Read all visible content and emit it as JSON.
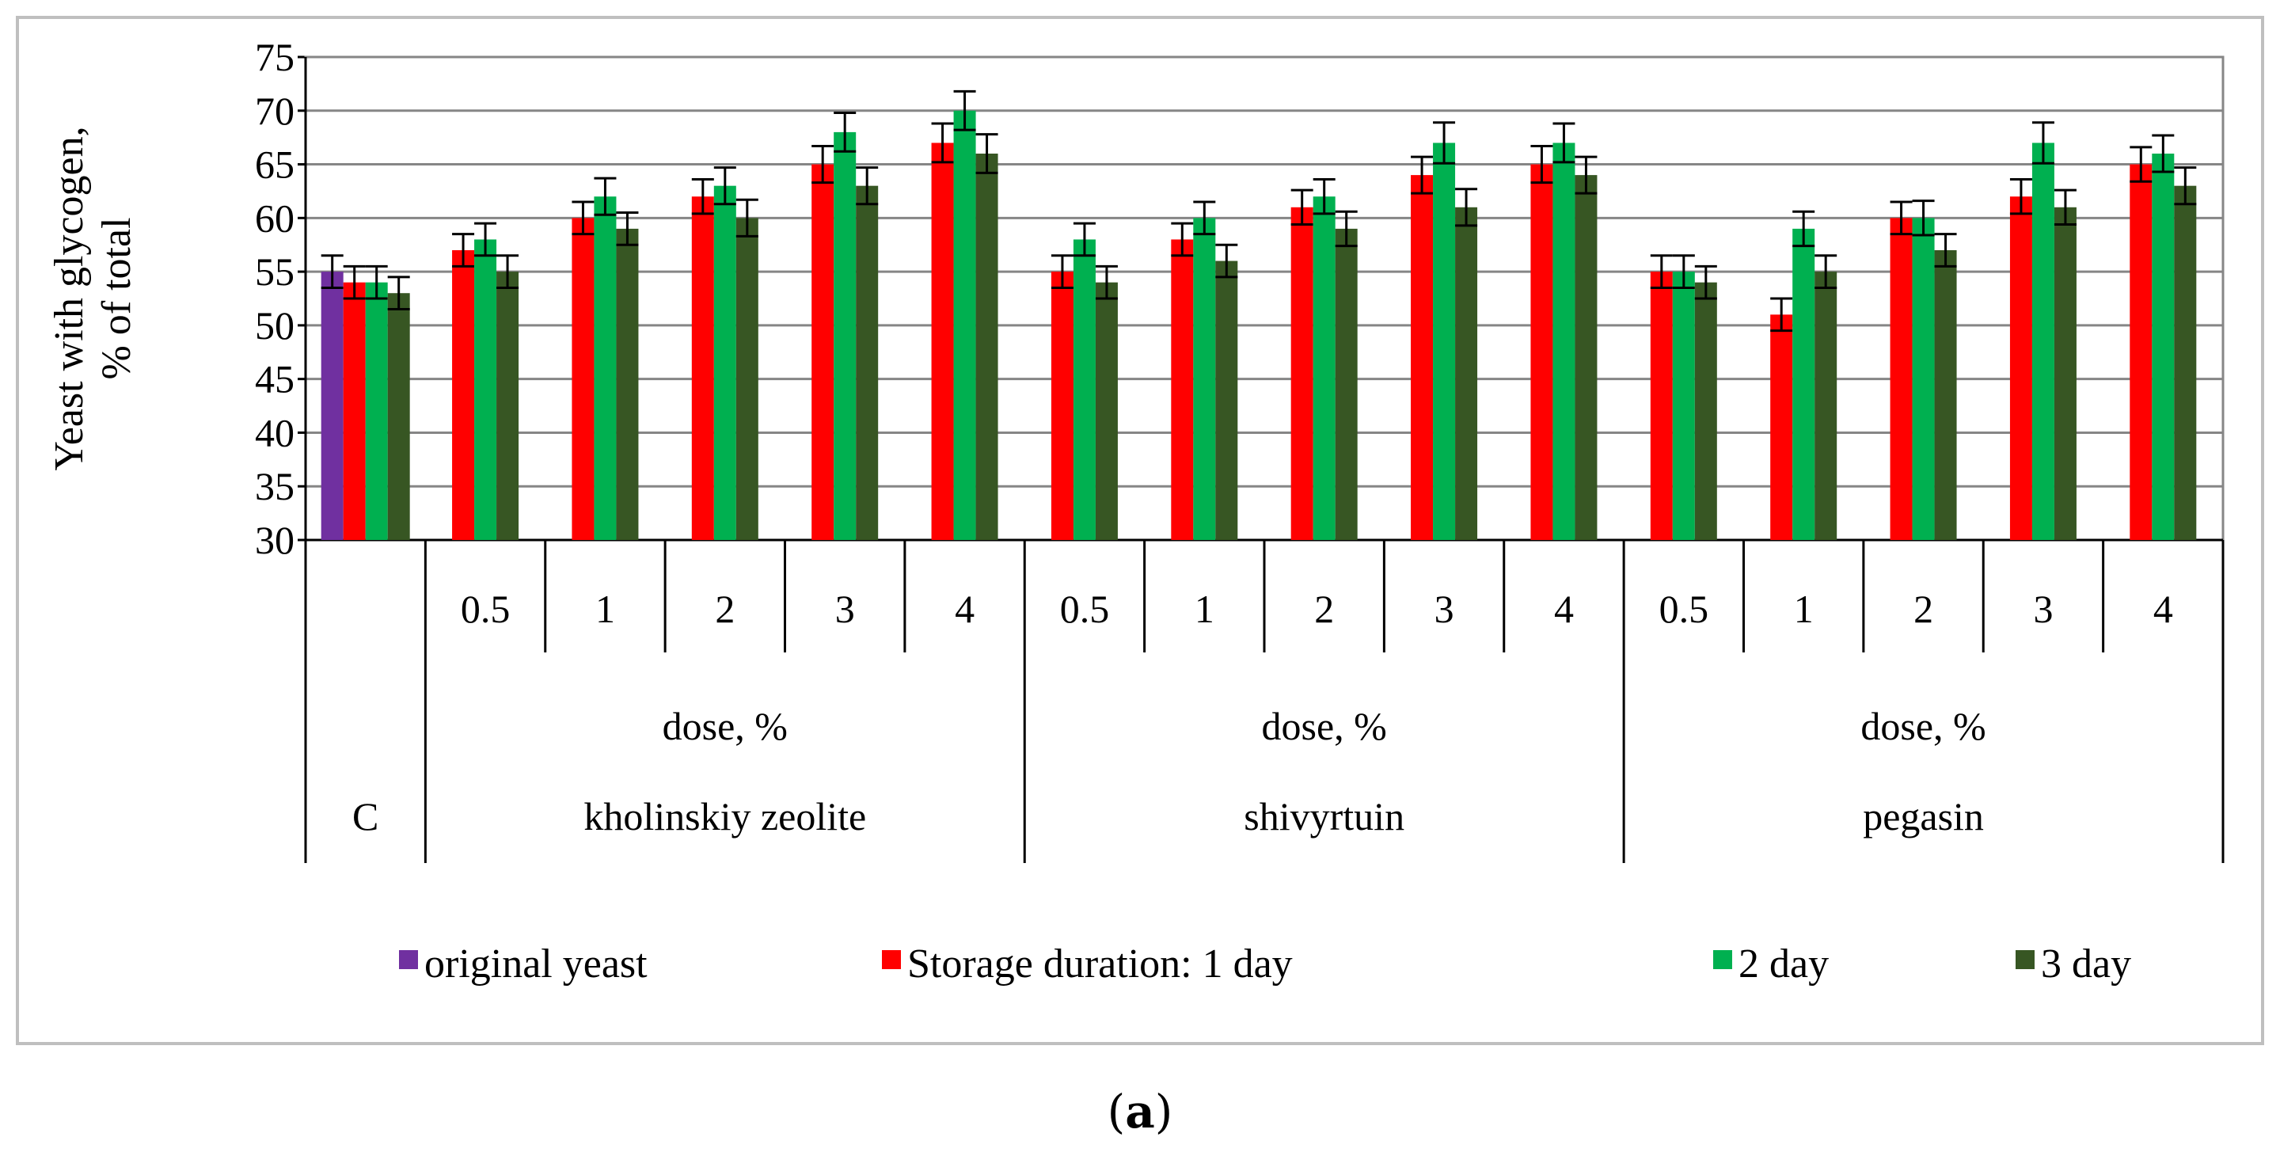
{
  "chart_data": {
    "type": "bar",
    "ylabel_line1": "Yeast with glycogen,",
    "ylabel_line2": "% of total",
    "ylim": [
      30,
      75
    ],
    "ytick_step": 5,
    "yticks": [
      "30",
      "35",
      "40",
      "45",
      "50",
      "55",
      "60",
      "65",
      "70",
      "75"
    ],
    "grid": true,
    "legend_position": "bottom",
    "series": [
      {
        "name": "original yeast",
        "color": "#7030a0"
      },
      {
        "name": "Storage duration: 1 day",
        "color": "#ff0000"
      },
      {
        "name": "2 day",
        "color": "#00b050"
      },
      {
        "name": "3 day",
        "color": "#375623"
      }
    ],
    "groups": [
      {
        "label": "C",
        "dose_label": "",
        "categories": [
          ""
        ],
        "values": [
          [
            55,
            54,
            54,
            53
          ]
        ],
        "errors": [
          [
            1.5,
            1.5,
            1.5,
            1.5
          ]
        ]
      },
      {
        "label": "kholinskiy zeolite",
        "dose_label": "dose, %",
        "categories": [
          "0.5",
          "1",
          "2",
          "3",
          "4"
        ],
        "values": [
          [
            null,
            57,
            58,
            55
          ],
          [
            null,
            60,
            62,
            59
          ],
          [
            null,
            62,
            63,
            60
          ],
          [
            null,
            65,
            68,
            63
          ],
          [
            null,
            67,
            70,
            66
          ]
        ],
        "errors": [
          [
            0,
            1.5,
            1.5,
            1.5
          ],
          [
            0,
            1.5,
            1.7,
            1.5
          ],
          [
            0,
            1.6,
            1.7,
            1.7
          ],
          [
            0,
            1.7,
            1.8,
            1.7
          ],
          [
            0,
            1.8,
            1.8,
            1.8
          ]
        ]
      },
      {
        "label": "shivyrtuin",
        "dose_label": "dose, %",
        "categories": [
          "0.5",
          "1",
          "2",
          "3",
          "4"
        ],
        "values": [
          [
            null,
            55,
            58,
            54
          ],
          [
            null,
            58,
            60,
            56
          ],
          [
            null,
            61,
            62,
            59
          ],
          [
            null,
            64,
            67,
            61
          ],
          [
            null,
            65,
            67,
            64
          ]
        ],
        "errors": [
          [
            0,
            1.5,
            1.5,
            1.5
          ],
          [
            0,
            1.5,
            1.5,
            1.5
          ],
          [
            0,
            1.6,
            1.6,
            1.6
          ],
          [
            0,
            1.7,
            1.9,
            1.7
          ],
          [
            0,
            1.7,
            1.8,
            1.7
          ]
        ]
      },
      {
        "label": "pegasin",
        "dose_label": "dose, %",
        "categories": [
          "0.5",
          "1",
          "2",
          "3",
          "4"
        ],
        "values": [
          [
            null,
            55,
            55,
            54
          ],
          [
            null,
            51,
            59,
            55
          ],
          [
            null,
            60,
            60,
            57
          ],
          [
            null,
            62,
            67,
            61
          ],
          [
            null,
            65,
            66,
            63
          ]
        ],
        "errors": [
          [
            0,
            1.5,
            1.5,
            1.5
          ],
          [
            0,
            1.5,
            1.6,
            1.5
          ],
          [
            0,
            1.5,
            1.6,
            1.5
          ],
          [
            0,
            1.6,
            1.9,
            1.6
          ],
          [
            0,
            1.6,
            1.7,
            1.7
          ]
        ]
      }
    ]
  },
  "caption": {
    "open": "(",
    "letter": "a",
    "close": ")"
  }
}
